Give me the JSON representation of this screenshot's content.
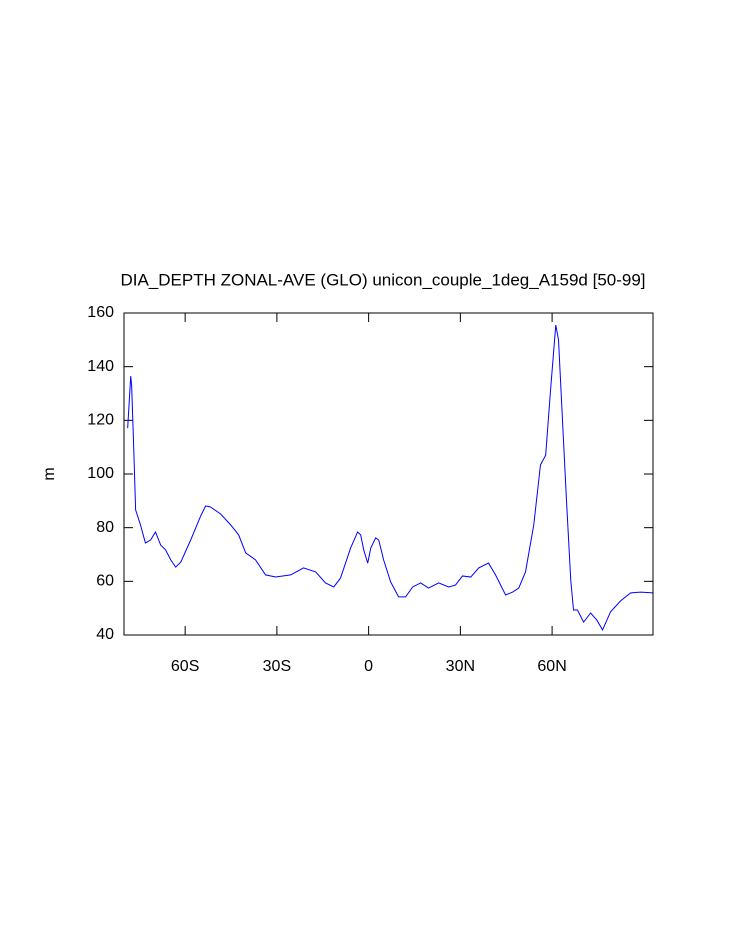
{
  "chart_data": {
    "type": "line",
    "title": "DIA_DEPTH ZONAL-AVE (GLO) unicon_couple_1deg_A159d [50-99]",
    "y_label": "m",
    "xlim": [
      -80,
      93
    ],
    "ylim": [
      40,
      160
    ],
    "xticks": [
      {
        "value": -60,
        "label": "60S"
      },
      {
        "value": -30,
        "label": "30S"
      },
      0,
      {
        "value": 30,
        "label": "30N"
      },
      {
        "value": 60,
        "label": "60N"
      }
    ],
    "yticks": [
      40,
      60,
      80,
      100,
      120,
      140,
      160
    ],
    "x": [
      -78.8,
      -77.8,
      -77.5,
      -76.8,
      -76.2,
      -74.6,
      -73,
      -71.3,
      -69.7,
      -68,
      -66.4,
      -64.7,
      -63.1,
      -61.4,
      -58.2,
      -54.9,
      -53.3,
      -51.7,
      -48.4,
      -45.1,
      -42.5,
      -40.2,
      -37,
      -33.7,
      -30.4,
      -25.5,
      -21.3,
      -17.3,
      -14.1,
      -11.4,
      -9.2,
      -5.9,
      -3.6,
      -2.6,
      -1.6,
      -0.3,
      0.7,
      2.3,
      3.3,
      4.9,
      7.2,
      9.8,
      12.1,
      14.4,
      17,
      19.6,
      22.9,
      26.2,
      28.4,
      30.7,
      33.4,
      36,
      39.2,
      41.5,
      44.8,
      47.1,
      49.1,
      51.3,
      54,
      56.2,
      57.9,
      59.5,
      61.2,
      62.1,
      63.4,
      64.7,
      66.1,
      67,
      68.3,
      70.3,
      72.6,
      74.6,
      76.5,
      79.1,
      82.4,
      85.7,
      89,
      92.9
    ],
    "series": [
      {
        "color": "#0000ff",
        "values": [
          117.1,
          136.5,
          133,
          109,
          86.6,
          81,
          74.3,
          75.4,
          78.4,
          73.5,
          71.7,
          68,
          65.3,
          67.2,
          75.4,
          84.4,
          88.1,
          87.7,
          85.1,
          81,
          77.3,
          70.6,
          68,
          62.4,
          61.6,
          62.4,
          65,
          63.5,
          59.4,
          57.9,
          61.2,
          72.4,
          78.4,
          77.3,
          71.7,
          66.8,
          72.4,
          76.2,
          75.4,
          68,
          59.8,
          54.2,
          54.2,
          57.9,
          59.4,
          57.5,
          59.4,
          57.9,
          58.6,
          62,
          61.6,
          65,
          66.8,
          62.4,
          54.9,
          56,
          57.5,
          63.5,
          81,
          103.4,
          107,
          131.3,
          155.5,
          150,
          120,
          90.3,
          60.5,
          49.3,
          49.3,
          44.8,
          48.2,
          45.6,
          41.9,
          48.6,
          52.7,
          55.7,
          56,
          55.7
        ]
      }
    ]
  }
}
